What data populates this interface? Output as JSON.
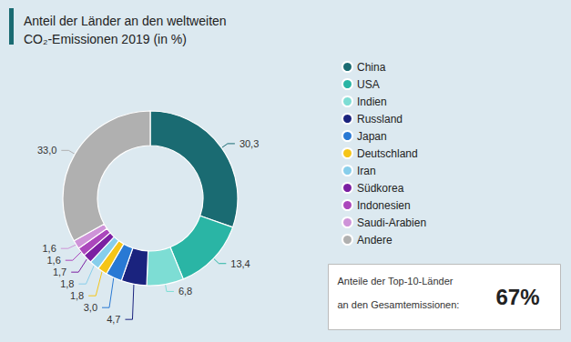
{
  "chart_data": {
    "type": "pie",
    "title": "Anteil der Länder an den weltweiten\nCO₂-Emissionen 2019 (in %)",
    "categories": [
      "China",
      "USA",
      "Indien",
      "Russland",
      "Japan",
      "Deutschland",
      "Iran",
      "Südkorea",
      "Indonesien",
      "Saudi-Arabien",
      "Andere"
    ],
    "values": [
      30.3,
      13.4,
      6.8,
      4.7,
      3.0,
      1.8,
      1.8,
      1.7,
      1.6,
      1.6,
      33.0
    ],
    "value_labels": [
      "30,3",
      "13,4",
      "6,8",
      "4,7",
      "3,0",
      "1,8",
      "1,8",
      "1,7",
      "1,6",
      "1,6",
      "33,0"
    ],
    "colors": [
      "#1a6b72",
      "#2ab5a5",
      "#7dddd4",
      "#1a237e",
      "#2979d4",
      "#f5c518",
      "#87ceeb",
      "#7b1fa2",
      "#ab47bc",
      "#ce93d8",
      "#b0b0b0"
    ],
    "data_labels": true,
    "legend": "right",
    "annotations": [
      "Anteile der Top-10-Länder",
      "an den Gesamtemissionen:",
      "67%"
    ]
  }
}
